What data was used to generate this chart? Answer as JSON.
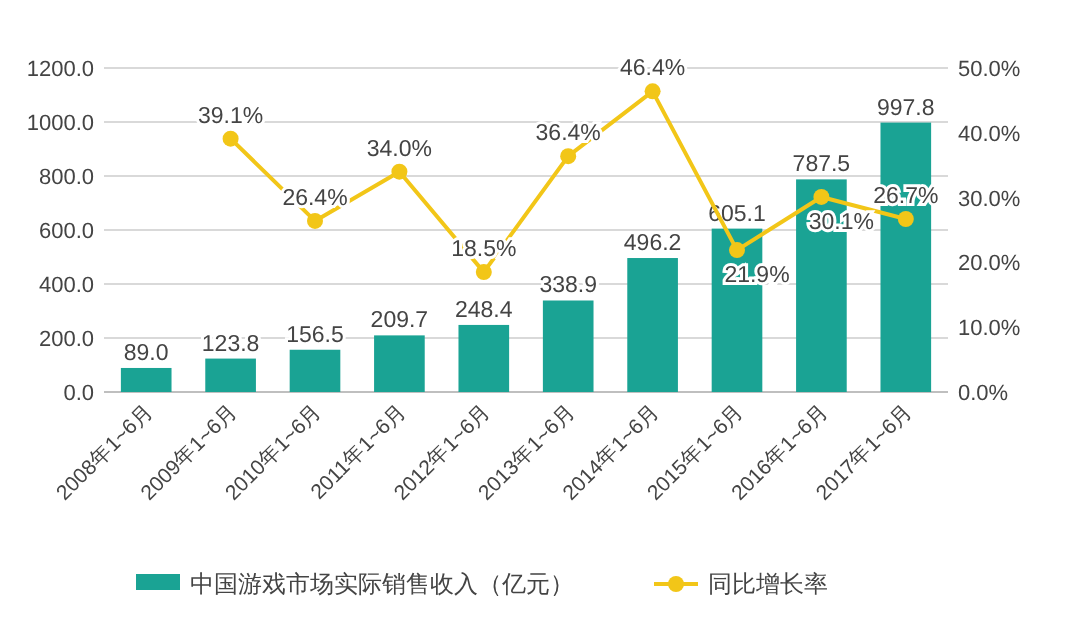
{
  "chart_data": {
    "type": "bar",
    "categories": [
      "2008年1~6月",
      "2009年1~6月",
      "2010年1~6月",
      "2011年1~6月",
      "2012年1~6月",
      "2013年1~6月",
      "2014年1~6月",
      "2015年1~6月",
      "2016年1~6月",
      "2017年1~6月"
    ],
    "series": [
      {
        "name": "中国游戏市场实际销售收入（亿元）",
        "color": "#1aa394",
        "values": [
          89.0,
          123.8,
          156.5,
          209.7,
          248.4,
          338.9,
          496.2,
          605.1,
          787.5,
          997.8
        ],
        "value_labels": [
          "89.0",
          "123.8",
          "156.5",
          "209.7",
          "248.4",
          "338.9",
          "496.2",
          "605.1",
          "787.5",
          "997.8"
        ]
      },
      {
        "name": "同比增长率",
        "type": "line",
        "axis": "y2",
        "color": "#f2c618",
        "marker": "circle",
        "values": [
          null,
          39.1,
          26.4,
          34.0,
          18.5,
          36.4,
          46.4,
          21.9,
          30.1,
          26.7
        ],
        "value_labels": [
          null,
          "39.1%",
          "26.4%",
          "34.0%",
          "18.5%",
          "36.4%",
          "46.4%",
          "21.9%",
          "30.1%",
          "26.7%"
        ]
      }
    ],
    "ylim": [
      0,
      1200
    ],
    "yticks": [
      {
        "value": 0,
        "label": "0.0"
      },
      {
        "value": 200,
        "label": "200.0"
      },
      {
        "value": 400,
        "label": "400.0"
      },
      {
        "value": 600,
        "label": "600.0"
      },
      {
        "value": 800,
        "label": "800.0"
      },
      {
        "value": 1000,
        "label": "1000.0"
      },
      {
        "value": 1200,
        "label": "1200.0"
      }
    ],
    "y2lim": [
      0,
      50
    ],
    "y2ticks": [
      {
        "value": 0,
        "label": "0.0%"
      },
      {
        "value": 10,
        "label": "10.0%"
      },
      {
        "value": 20,
        "label": "20.0%"
      },
      {
        "value": 30,
        "label": "30.0%"
      },
      {
        "value": 40,
        "label": "40.0%"
      },
      {
        "value": 50,
        "label": "50.0%"
      }
    ],
    "grid": "y",
    "legend": "bottom"
  }
}
